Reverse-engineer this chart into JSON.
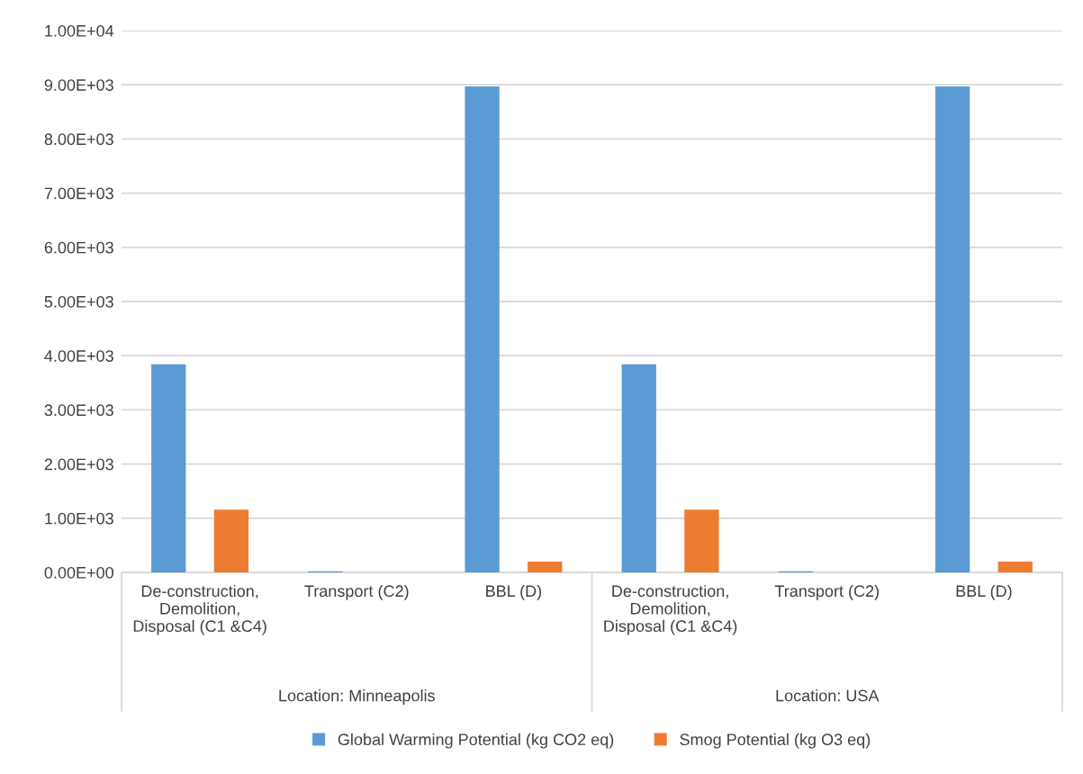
{
  "chart_data": {
    "type": "bar",
    "categories": [
      "De-construction,\nDemolition,\nDisposal (C1 &C4)",
      "Transport (C2)",
      "BBL (D)",
      "De-construction,\nDemolition,\nDisposal (C1 &C4)",
      "Transport (C2)",
      "BBL (D)"
    ],
    "series": [
      {
        "name": "Global Warming Potential (kg CO2 eq)",
        "color": "#5b9bd5",
        "values": [
          3840,
          20,
          8970,
          3840,
          20,
          8970
        ]
      },
      {
        "name": "Smog Potential (kg O3 eq)",
        "color": "#ed7d31",
        "values": [
          1160,
          null,
          200,
          1160,
          null,
          200
        ]
      }
    ],
    "annotations": [
      "Location: Minneapolis",
      "Location: USA"
    ],
    "ylim": [
      0,
      10000
    ],
    "yticks": [
      {
        "value": 0,
        "label": "0.00E+00"
      },
      {
        "value": 1000,
        "label": "1.00E+03"
      },
      {
        "value": 2000,
        "label": "2.00E+03"
      },
      {
        "value": 3000,
        "label": "3.00E+03"
      },
      {
        "value": 4000,
        "label": "4.00E+03"
      },
      {
        "value": 5000,
        "label": "5.00E+03"
      },
      {
        "value": 6000,
        "label": "6.00E+03"
      },
      {
        "value": 7000,
        "label": "7.00E+03"
      },
      {
        "value": 8000,
        "label": "8.00E+03"
      },
      {
        "value": 9000,
        "label": "9.00E+03"
      },
      {
        "value": 10000,
        "label": "1.00E+04"
      }
    ],
    "grid": "y",
    "legend": "bottom"
  }
}
